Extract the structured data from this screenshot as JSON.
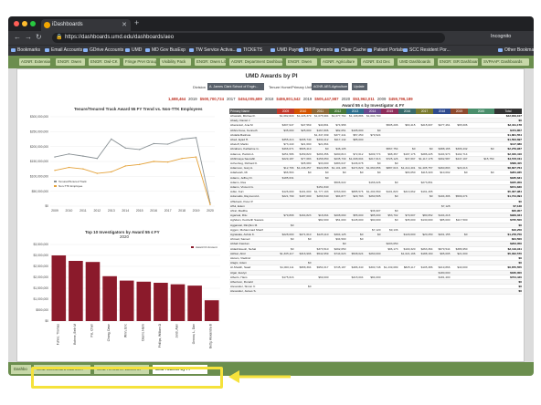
{
  "browser": {
    "tab_title": "iDashboards",
    "url": "https://dashboards.umd.edu/dashboards/aeo",
    "profile": "Incognito",
    "bookmarks": [
      "Bookmarks",
      "Email Accounts",
      "GDrive Accounts",
      "UMD",
      "MD Gov BusExp",
      "TW Service Activa...",
      "TICKETS",
      "UMD Payroll",
      "Bill Payments",
      "Clear Cache",
      "Patient Portals",
      "SCC Resident Por...",
      "Other Bookmarks"
    ]
  },
  "app_tabs": [
    "AGNR: Extension",
    "ENGR: Owen",
    "ENGR: Owl-CK",
    "Fringe PAH Group",
    "Visibility Pack",
    "ENGR: Owen Lit",
    "AGNR: Department Dashboards",
    "ENGR: Owen",
    "AGNR: Agriculture",
    "AGNR: Ext Dec",
    "UMD Dashboards",
    "ENGR: ISR Dashboards",
    "SVPAAP: Dashboards"
  ],
  "dashboard": {
    "title": "UMD Awards by PI",
    "filters": {
      "division_label": "Division",
      "division_value": "A. James Clark School of Engin...",
      "tenure_label": "Tenure Home/Primary Unit",
      "tenure_value": "AGNR-AES-Agriculture ...",
      "update_label": "Update"
    },
    "totals": [
      "1,688,464",
      "2019",
      "$500,700,724",
      "2017",
      "$454,005,689",
      "2018",
      "$486,801,542",
      "2019",
      "$505,447,987",
      "2020",
      "$53,962,011",
      "2009",
      "$459,796,189"
    ]
  },
  "line_chart": {
    "title": "Tenure/Tenured Track Award 55 FY Trend vs. Non-TTK Employees",
    "legend": [
      "Tenured/Tenured Track",
      "Non-TTK Employee"
    ],
    "colors": {
      "series_1": "#8a9296",
      "series_2": "#e4a23a"
    }
  },
  "bar_chart": {
    "title": "Top 10 Investigators by Award 55 ≤ FY",
    "year": "2020",
    "legend": "Award Or Amount",
    "color": "#8b1a2b"
  },
  "chart_data": [
    {
      "type": "line",
      "title": "Tenure/Tenured Track Award 55 FY Trend vs. Non-TTK Employees",
      "x": [
        "2009",
        "2010",
        "2011",
        "2012",
        "2013",
        "2014",
        "2015",
        "2016",
        "2017",
        "2018",
        "2019",
        "2020"
      ],
      "ylim": [
        0,
        300000000
      ],
      "yticks": [
        "$300,000,000",
        "$250,000,000",
        "$200,000,000",
        "$150,000,000",
        "$100,000,000",
        "$50,000,000",
        "$0"
      ],
      "series": [
        {
          "name": "Tenured/Tenured Track",
          "values": [
            165000000,
            175000000,
            168000000,
            160000000,
            225000000,
            195000000,
            190000000,
            210000000,
            208000000,
            225000000,
            230000000,
            10000000
          ]
        },
        {
          "name": "Non-TTK Employee",
          "values": [
            120000000,
            130000000,
            125000000,
            110000000,
            115000000,
            135000000,
            140000000,
            150000000,
            148000000,
            160000000,
            165000000,
            5000000
          ]
        }
      ]
    },
    {
      "type": "bar",
      "title": "Top 10 Investigators by Award 55 ≤ FY",
      "categories": [
        "Fuhrer, Thomas",
        "Bohme, Beth M",
        "Pei, Chari",
        "Chang, Dave",
        "Winn, Eric",
        "Dasini, Hank",
        "Phillips, William D",
        "Jordi, Alan",
        "Grosso, L, Dan",
        "Betty, Alexandra B"
      ],
      "values": [
        3000000,
        2750000,
        2700000,
        2050000,
        1850000,
        1800000,
        1750000,
        1680000,
        1620000,
        950000
      ],
      "ylim": [
        0,
        3500000
      ],
      "yticks": [
        "$3,500,000",
        "$3,000,000",
        "$2,500,000",
        "$2,000,000",
        "$1,500,000",
        "$1,000,000",
        "$500,000",
        "$0"
      ]
    }
  ],
  "table": {
    "title": "Award 55 s by Investigator & FY",
    "headers": [
      "Primary Name",
      "2009",
      "2010",
      "2011",
      "2012",
      "2013",
      "2014",
      "2015",
      "2016",
      "2017",
      "2018",
      "2019",
      "2020",
      "Total"
    ],
    "header_colors": [
      "#5a5a5a",
      "#c0392b",
      "#d35400",
      "#8e6a3a",
      "#4a7a3a",
      "#2e6f8e",
      "#6b4a8e",
      "#8e2e5a",
      "#3a6b6b",
      "#7a7a2e",
      "#2e4a8e",
      "#8e4a2e",
      "#4a8e6b",
      "#333333"
    ],
    "rows": [
      {
        "name": "Afrasiabi, Michael F.",
        "vals": [
          "$1,682,829",
          "$1,226,379",
          "$1,075,984",
          "$1,077,764",
          "$1,198,886",
          "$1,004,790",
          "",
          "",
          "",
          "",
          "",
          ""
        ],
        "total": "$22,009,107"
      },
      {
        "name": "Abady, Daniel J",
        "vals": [
          "",
          "",
          "",
          "",
          "",
          "",
          "",
          "",
          "",
          "",
          "",
          ""
        ],
        "total": "$0"
      },
      {
        "name": "Aberasturi, Ana M",
        "vals": [
          "$307,947",
          "$47,569",
          "$40,891",
          "$74,958",
          "",
          "",
          "$505,206",
          "$63,415",
          "$215,607",
          "$277,461",
          "$65,606",
          ""
        ],
        "total": "$2,311,178"
      },
      {
        "name": "Abbruzzese, Kenneth",
        "vals": [
          "$35,000",
          "$25,000",
          "$167,806",
          "$82,051",
          "$105,000",
          "$0",
          "",
          "",
          "",
          "",
          "",
          ""
        ],
        "total": "$474,857"
      },
      {
        "name": "Abdalla Bashwa",
        "vals": [
          "",
          "",
          "$1,347,339",
          "$377,441",
          "$57,250",
          "$79,524",
          "",
          "",
          "",
          "",
          "",
          ""
        ],
        "total": "$1,861,554"
      },
      {
        "name": "Abed, Eyad H.",
        "vals": [
          "$355,213",
          "$335,740",
          "$330,412",
          "$117,142",
          "$85,000",
          "",
          "",
          "",
          "",
          "",
          "",
          ""
        ],
        "total": "$1,503,697"
      },
      {
        "name": "Abeloff, Martin",
        "vals": [
          "$73,440",
          "$21,690",
          "$21,864",
          "",
          "",
          "",
          "",
          "",
          "",
          "",
          "",
          ""
        ],
        "total": "$117,086"
      },
      {
        "name": "Abraham, Katharine G.",
        "vals": [
          "$466,071",
          "$505,410",
          "$0",
          "$46,105",
          "",
          "",
          "$567,754",
          "$0",
          "$0",
          "$388,165",
          "$306,432",
          "$0"
        ],
        "total": "$2,279,937"
      },
      {
        "name": "Adamos, Patrick A.",
        "vals": [
          "$251,586",
          "$159,820",
          "$266,356",
          "$290,813",
          "$72,612",
          "$209,774",
          "$98,367",
          "$197,176",
          "$286,225",
          "$104,973",
          "$102,714",
          ""
        ],
        "total": "$2,040,416"
      },
      {
        "name": "Abbhinaya Saurabh",
        "vals": [
          "$229,187",
          "$77,683",
          "$158,650",
          "$235,739",
          "$1,008,604",
          "$217,613",
          "$725,126",
          "$37,697",
          "$1,117,178",
          "$302,587",
          "$447,197",
          "$15,750"
        ],
        "total": "$4,572,011"
      },
      {
        "name": "Achenbog, Richard K.",
        "vals": [
          "",
          "$35,680",
          "$33,000",
          "$383,647",
          "$136,078",
          "$0",
          "$0",
          "",
          "",
          "",
          "",
          ""
        ],
        "total": "$588,405"
      },
      {
        "name": "Adamson, Gary A.",
        "vals": [
          "$12,766",
          "$1,246,257",
          "$922,868",
          "$1,101,108",
          "$474,829",
          "$1,060,656",
          "$887,016",
          "$1,214,401",
          "$1,405,757",
          "$460,893",
          "$20,213",
          ""
        ],
        "total": "$8,607,764"
      },
      {
        "name": "Adarkwah, Mi",
        "vals": [
          "$66,563",
          "$0",
          "$0",
          "$0",
          "$0",
          "$0",
          "",
          "$93,050",
          "$115,320",
          "$10,002",
          "$0",
          "$0"
        ],
        "total": "$284,935"
      },
      {
        "name": "Adams, Jeffrey D.",
        "vals": [
          "$185,631",
          "",
          "$0",
          "",
          "",
          "",
          "",
          "",
          "",
          "",
          "",
          ""
        ],
        "total": "$185,631"
      },
      {
        "name": "Adams, Rea",
        "vals": [
          "",
          "",
          "",
          "$506,022",
          "",
          "$166,026",
          "$0",
          "",
          "$273,861",
          "",
          "",
          ""
        ],
        "total": "$945,909"
      },
      {
        "name": "Adams, Vincent G.",
        "vals": [
          "",
          "",
          "$151,840",
          "",
          "",
          "",
          "",
          "",
          "",
          "",
          "",
          ""
        ],
        "total": "$151,840"
      },
      {
        "name": "Adler, Kurt",
        "vals": [
          "$126,000",
          "$101,000",
          "$1,777,193",
          "$763,693",
          "$885,576",
          "$1,204,560",
          "$101,820",
          "$213,662",
          "$191,465",
          "",
          "",
          ""
        ],
        "total": "$5,367,984"
      },
      {
        "name": "Adomaitis, Raymond A.",
        "vals": [
          "$221,799",
          "$187,000",
          "$266,540",
          "$84,877",
          "$29,793",
          "$260,505",
          "$0",
          "",
          "$0",
          "$104,306",
          "$509,274",
          ""
        ],
        "total": "$1,744,094"
      },
      {
        "name": "Affleback, Peter P.",
        "vals": [
          "",
          "",
          "",
          "",
          "",
          "",
          "",
          "",
          "",
          "",
          "",
          ""
        ],
        "total": "$0"
      },
      {
        "name": "Afful, Edem",
        "vals": [
          "",
          "",
          "",
          "",
          "",
          "",
          "",
          "",
          "",
          "$7,128",
          "",
          ""
        ],
        "total": "$7,128"
      },
      {
        "name": "Afzal, Madiha",
        "vals": [
          "",
          "",
          "",
          "",
          "",
          "$36,907",
          "$0",
          "",
          "",
          "",
          "",
          ""
        ],
        "total": "$36,907"
      },
      {
        "name": "Agarwal, Ritu",
        "vals": [
          "$79,868",
          "$164,823",
          "$18,064",
          "$208,090",
          "$55,000",
          "$85,000",
          "$53,702",
          "$79,607",
          "$80,652",
          "$104,218",
          "",
          ""
        ],
        "total": "$929,024"
      },
      {
        "name": "Aghdam, Keshelth Saeteis",
        "vals": [
          "",
          "",
          "$82,000",
          "$51,000",
          "$145,000",
          "$90,000",
          "$0",
          "$35,000",
          "$130,000",
          "$85,000",
          "$117,500",
          ""
        ],
        "total": "$735,500"
      },
      {
        "name": "Aggarwal, Rimjhim M.",
        "vals": [
          "$0",
          "",
          "",
          "",
          "",
          "",
          "",
          "",
          "",
          "",
          "",
          ""
        ],
        "total": "$0"
      },
      {
        "name": "Aggon, Mohammad Sharif",
        "vals": [
          "",
          "",
          "",
          "",
          "",
          "$7,120",
          "$9,136",
          "",
          "",
          "",
          "",
          ""
        ],
        "total": "$16,256"
      },
      {
        "name": "Agrawala, Ashok K.",
        "vals": [
          "$228,000",
          "$271,610",
          "$125,110",
          "$304,125",
          "$0",
          "$0",
          "",
          "$129,000",
          "$20,250",
          "$201,155",
          "$0",
          ""
        ],
        "total": "$1,278,750"
      },
      {
        "name": "Ahmad, Samed",
        "vals": [
          "$0",
          "$0",
          "",
          "$34,500",
          "$0",
          "",
          "",
          "",
          "",
          "",
          "",
          ""
        ],
        "total": "$34,500"
      },
      {
        "name": "Abbah Fawzan",
        "vals": [
          "",
          "",
          "",
          "$0",
          "",
          "",
          "$203,050",
          "",
          "",
          "",
          "",
          ""
        ],
        "total": "$203,050"
      },
      {
        "name": "Aldadi Eseoh, Nehal",
        "vals": [
          "$0",
          "",
          "$373,510",
          "$292,050",
          "",
          "",
          "$96,173",
          "$100,320",
          "$263,364",
          "$679,544",
          "$386,950",
          ""
        ],
        "total": "$2,191,911"
      },
      {
        "name": "Akhtar, Abid",
        "vals": [
          "$1,305,117",
          "$316,996",
          "$542,959",
          "$744,023",
          "$538,024",
          "$260,000",
          "",
          "$1,021,196",
          "$188,160",
          "$95,095",
          "$21,000",
          ""
        ],
        "total": "$5,032,570"
      },
      {
        "name": "Akcam, Vladimir",
        "vals": [
          "",
          "",
          "",
          "",
          "",
          "",
          "",
          "",
          "",
          "",
          "",
          ""
        ],
        "total": "$0"
      },
      {
        "name": "Alagic, Adem",
        "vals": [
          "",
          "$0",
          "",
          "",
          "",
          "",
          "",
          "",
          "",
          "",
          "",
          ""
        ],
        "total": "$0"
      },
      {
        "name": "Al-Sheikh, Saad",
        "vals": [
          "$1,000,111",
          "$958,394",
          "$950,317",
          "$745,187",
          "$486,340",
          "$300,748",
          "$1,239,089",
          "$825,117",
          "$105,386",
          "$219,866",
          "$40,000",
          ""
        ],
        "total": "$6,870,555"
      },
      {
        "name": "Algar, Evelyn",
        "vals": [
          "",
          "",
          "",
          "",
          "",
          "",
          "",
          "",
          "",
          "$180,000",
          "",
          ""
        ],
        "total": "$180,000"
      },
      {
        "name": "Alberts, Hans",
        "vals": [
          "$175,016",
          "",
          "$69,000",
          "",
          "$215,004",
          "$84,000",
          "",
          "",
          "",
          "$181,400",
          "",
          ""
        ],
        "total": "$724,420"
      },
      {
        "name": "Albertson, Ronald",
        "vals": [
          "",
          "",
          "",
          "",
          "",
          "",
          "",
          "",
          "",
          "",
          "",
          ""
        ],
        "total": "$0"
      },
      {
        "name": "Alexander, Simon C",
        "vals": [
          "",
          "$0",
          "",
          "",
          "",
          "",
          "",
          "",
          "",
          "",
          "",
          ""
        ],
        "total": "$0"
      },
      {
        "name": "Alexander, James S.",
        "vals": [
          "",
          "",
          "",
          "",
          "",
          "",
          "",
          "",
          "",
          "",
          "",
          ""
        ],
        "total": "$0"
      }
    ]
  },
  "sheet_tabs": [
    "Dashbo",
    "UMD Dashboard Launcher",
    "UMD Research Launcher",
    "UMD Awards by PI"
  ],
  "active_sheet": "UMD Awards by PI"
}
